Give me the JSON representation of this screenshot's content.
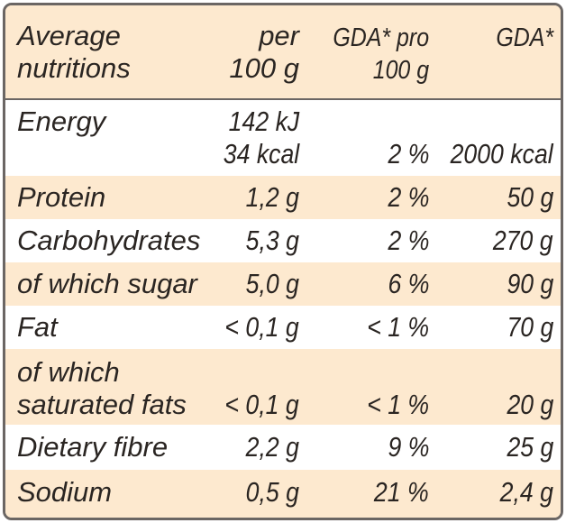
{
  "header": {
    "col_name_line1": "Average",
    "col_name_line2": "nutritions",
    "col_per_line1": "per",
    "col_per_line2": "100 g",
    "col_gda_pro_line1": "GDA* pro",
    "col_gda_pro_line2": "100 g",
    "col_gda": "GDA*"
  },
  "rows": [
    {
      "name": "Energy",
      "per_100g_line1": "142 kJ",
      "per_100g_line2": "34 kcal",
      "gda_pct": "2 %",
      "gda": "2000 kcal"
    },
    {
      "name": "Protein",
      "per_100g": "1,2 g",
      "gda_pct": "2 %",
      "gda": "50 g"
    },
    {
      "name": "Carbohydrates",
      "per_100g": "5,3 g",
      "gda_pct": "2 %",
      "gda": "270 g"
    },
    {
      "name": "of which sugar",
      "per_100g": "5,0 g",
      "gda_pct": "6 %",
      "gda": "90 g"
    },
    {
      "name": "Fat",
      "per_100g": "< 0,1 g",
      "gda_pct": "< 1 %",
      "gda": "70 g"
    },
    {
      "name_line1": "of which",
      "name_line2": "saturated fats",
      "per_100g": "< 0,1 g",
      "gda_pct": "< 1 %",
      "gda": "20 g"
    },
    {
      "name": "Dietary fibre",
      "per_100g": "2,2 g",
      "gda_pct": "9 %",
      "gda": "25 g"
    },
    {
      "name": "Sodium",
      "per_100g": "0,5 g",
      "gda_pct": "21 %",
      "gda": "2,4 g"
    }
  ],
  "colors": {
    "beige": "#fde9cf",
    "border": "#6b6664",
    "text": "#2a2522"
  }
}
